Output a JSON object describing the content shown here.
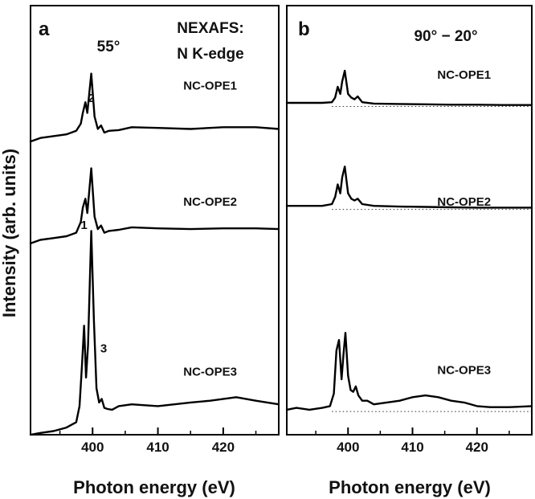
{
  "ylabel": "Intensity (arb. units)",
  "chart_data": [
    {
      "type": "line",
      "panel": "a",
      "annotation_lines": [
        "55°"
      ],
      "title_lines": [
        "NEXAFS:",
        "N K-edge"
      ],
      "xlabel": "Photon energy (eV)",
      "ylabel": "Intensity (arb. units)",
      "xlim": [
        390.5,
        428.5
      ],
      "ylim": [
        0,
        12
      ],
      "xticks": [
        400,
        410,
        420
      ],
      "xtick_labels": [
        "400",
        "410",
        "420"
      ],
      "peak_labels": [
        {
          "text": "1",
          "x": 398.7,
          "y": 5.75
        },
        {
          "text": "2",
          "x": 399.8,
          "y": 9.3
        },
        {
          "text": "3",
          "x": 401.7,
          "y": 2.3
        }
      ],
      "series": [
        {
          "name": "NC-OPE1",
          "offset": 8.2,
          "label_x": 418,
          "label_y": 9.65,
          "x": [
            390.5,
            392,
            394,
            396,
            397.5,
            398.2,
            398.5,
            398.9,
            399.2,
            399.8,
            400.3,
            400.8,
            401.3,
            401.8,
            402.5,
            404,
            406,
            410,
            415,
            420,
            425,
            428.5
          ],
          "y": [
            0.0,
            0.1,
            0.15,
            0.2,
            0.3,
            0.5,
            0.8,
            1.1,
            0.8,
            1.9,
            0.7,
            0.35,
            0.45,
            0.25,
            0.3,
            0.32,
            0.4,
            0.38,
            0.35,
            0.4,
            0.4,
            0.35
          ]
        },
        {
          "name": "NC-OPE2",
          "offset": 5.35,
          "label_x": 418,
          "label_y": 6.4,
          "x": [
            390.5,
            392,
            394,
            396,
            397.5,
            398.2,
            398.5,
            398.9,
            399.2,
            399.8,
            400.3,
            400.8,
            401.3,
            401.8,
            402.5,
            404,
            406,
            410,
            415,
            420,
            425,
            428.5
          ],
          "y": [
            0.0,
            0.1,
            0.15,
            0.2,
            0.3,
            0.6,
            1.0,
            1.25,
            0.85,
            2.1,
            0.75,
            0.4,
            0.5,
            0.3,
            0.35,
            0.38,
            0.45,
            0.42,
            0.4,
            0.42,
            0.42,
            0.4
          ]
        },
        {
          "name": "NC-OPE3",
          "offset": 0.0,
          "label_x": 418,
          "label_y": 1.65,
          "x": [
            390.5,
            392,
            394,
            396,
            397.5,
            398.0,
            398.4,
            398.7,
            399.0,
            399.3,
            399.8,
            400.2,
            400.6,
            401.0,
            401.4,
            401.8,
            402.3,
            403,
            404,
            406,
            410,
            415,
            418,
            422,
            425,
            428.5
          ],
          "y": [
            0.0,
            0.05,
            0.1,
            0.2,
            0.35,
            0.8,
            2.0,
            3.05,
            1.6,
            2.5,
            5.7,
            3.2,
            1.3,
            0.9,
            1.0,
            0.75,
            0.72,
            0.7,
            0.8,
            0.85,
            0.8,
            0.9,
            0.95,
            1.05,
            0.95,
            0.85
          ]
        }
      ]
    },
    {
      "type": "line",
      "panel": "b",
      "annotation_lines": [
        "90° − 20°"
      ],
      "xlabel": "Photon energy (eV)",
      "xlim": [
        390.5,
        428.5
      ],
      "ylim": [
        0,
        12
      ],
      "xticks": [
        400,
        410,
        420
      ],
      "xtick_labels": [
        "400",
        "410",
        "420"
      ],
      "baseline_style": "dotted",
      "series": [
        {
          "name": "NC-OPE1",
          "baseline": 9.18,
          "label_x": 418,
          "label_y": 9.95,
          "x": [
            390.5,
            393,
            396,
            397.5,
            398.0,
            398.4,
            398.8,
            399.1,
            399.5,
            400.0,
            400.5,
            401.0,
            401.5,
            402.2,
            404,
            408,
            412,
            416,
            420,
            424,
            428.5
          ],
          "y": [
            0.1,
            0.1,
            0.1,
            0.12,
            0.25,
            0.55,
            0.35,
            0.7,
            1.0,
            0.35,
            0.25,
            0.2,
            0.28,
            0.12,
            0.08,
            0.07,
            0.06,
            0.05,
            0.05,
            0.04,
            0.04
          ]
        },
        {
          "name": "NC-OPE2",
          "baseline": 6.3,
          "label_x": 418,
          "label_y": 6.4,
          "x": [
            390.5,
            393,
            396,
            397.5,
            398.0,
            398.4,
            398.8,
            399.1,
            399.5,
            400.0,
            400.5,
            401.0,
            401.5,
            402.2,
            404,
            408,
            412,
            416,
            420,
            424,
            428.5
          ],
          "y": [
            0.1,
            0.1,
            0.1,
            0.15,
            0.35,
            0.7,
            0.45,
            0.9,
            1.2,
            0.45,
            0.3,
            0.25,
            0.3,
            0.15,
            0.1,
            0.08,
            0.07,
            0.06,
            0.05,
            0.05,
            0.05
          ]
        },
        {
          "name": "NC-OPE3",
          "baseline": 0.65,
          "label_x": 418,
          "label_y": 1.7,
          "x": [
            390.5,
            392,
            394,
            396,
            397.2,
            397.8,
            398.2,
            398.6,
            399.0,
            399.3,
            399.6,
            400.0,
            400.4,
            400.8,
            401.2,
            401.6,
            402.2,
            403,
            404,
            406,
            408,
            410,
            412,
            414,
            416,
            418,
            420,
            422,
            425,
            428.5
          ],
          "y": [
            0.05,
            0.1,
            0.05,
            0.1,
            0.15,
            0.5,
            1.7,
            2.0,
            0.9,
            1.6,
            2.2,
            1.0,
            0.6,
            0.55,
            0.7,
            0.45,
            0.3,
            0.3,
            0.2,
            0.25,
            0.3,
            0.4,
            0.45,
            0.4,
            0.3,
            0.25,
            0.15,
            0.12,
            0.12,
            0.15
          ]
        }
      ]
    }
  ]
}
